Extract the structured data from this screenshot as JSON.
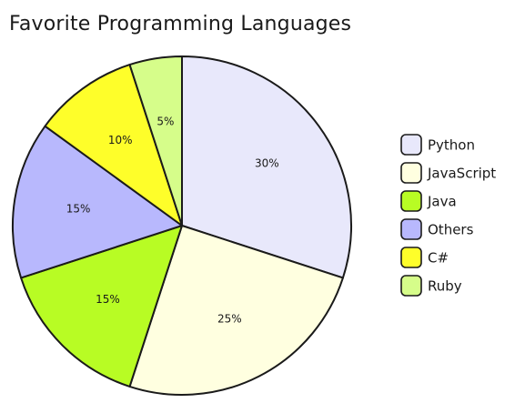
{
  "chart_data": {
    "type": "pie",
    "title": "Favorite Programming Languages",
    "legend_position": "right",
    "slices": [
      {
        "label": "Python",
        "value": 30,
        "display": "30%",
        "color": "#e8e8fb"
      },
      {
        "label": "JavaScript",
        "value": 25,
        "display": "25%",
        "color": "#ffffe0"
      },
      {
        "label": "Java",
        "value": 15,
        "display": "15%",
        "color": "#b8fc24"
      },
      {
        "label": "Others",
        "value": 15,
        "display": "15%",
        "color": "#b8b8fd"
      },
      {
        "label": "C#",
        "value": 10,
        "display": "10%",
        "color": "#fefe2a"
      },
      {
        "label": "Ruby",
        "value": 5,
        "display": "5%",
        "color": "#d6fd8a"
      }
    ]
  }
}
